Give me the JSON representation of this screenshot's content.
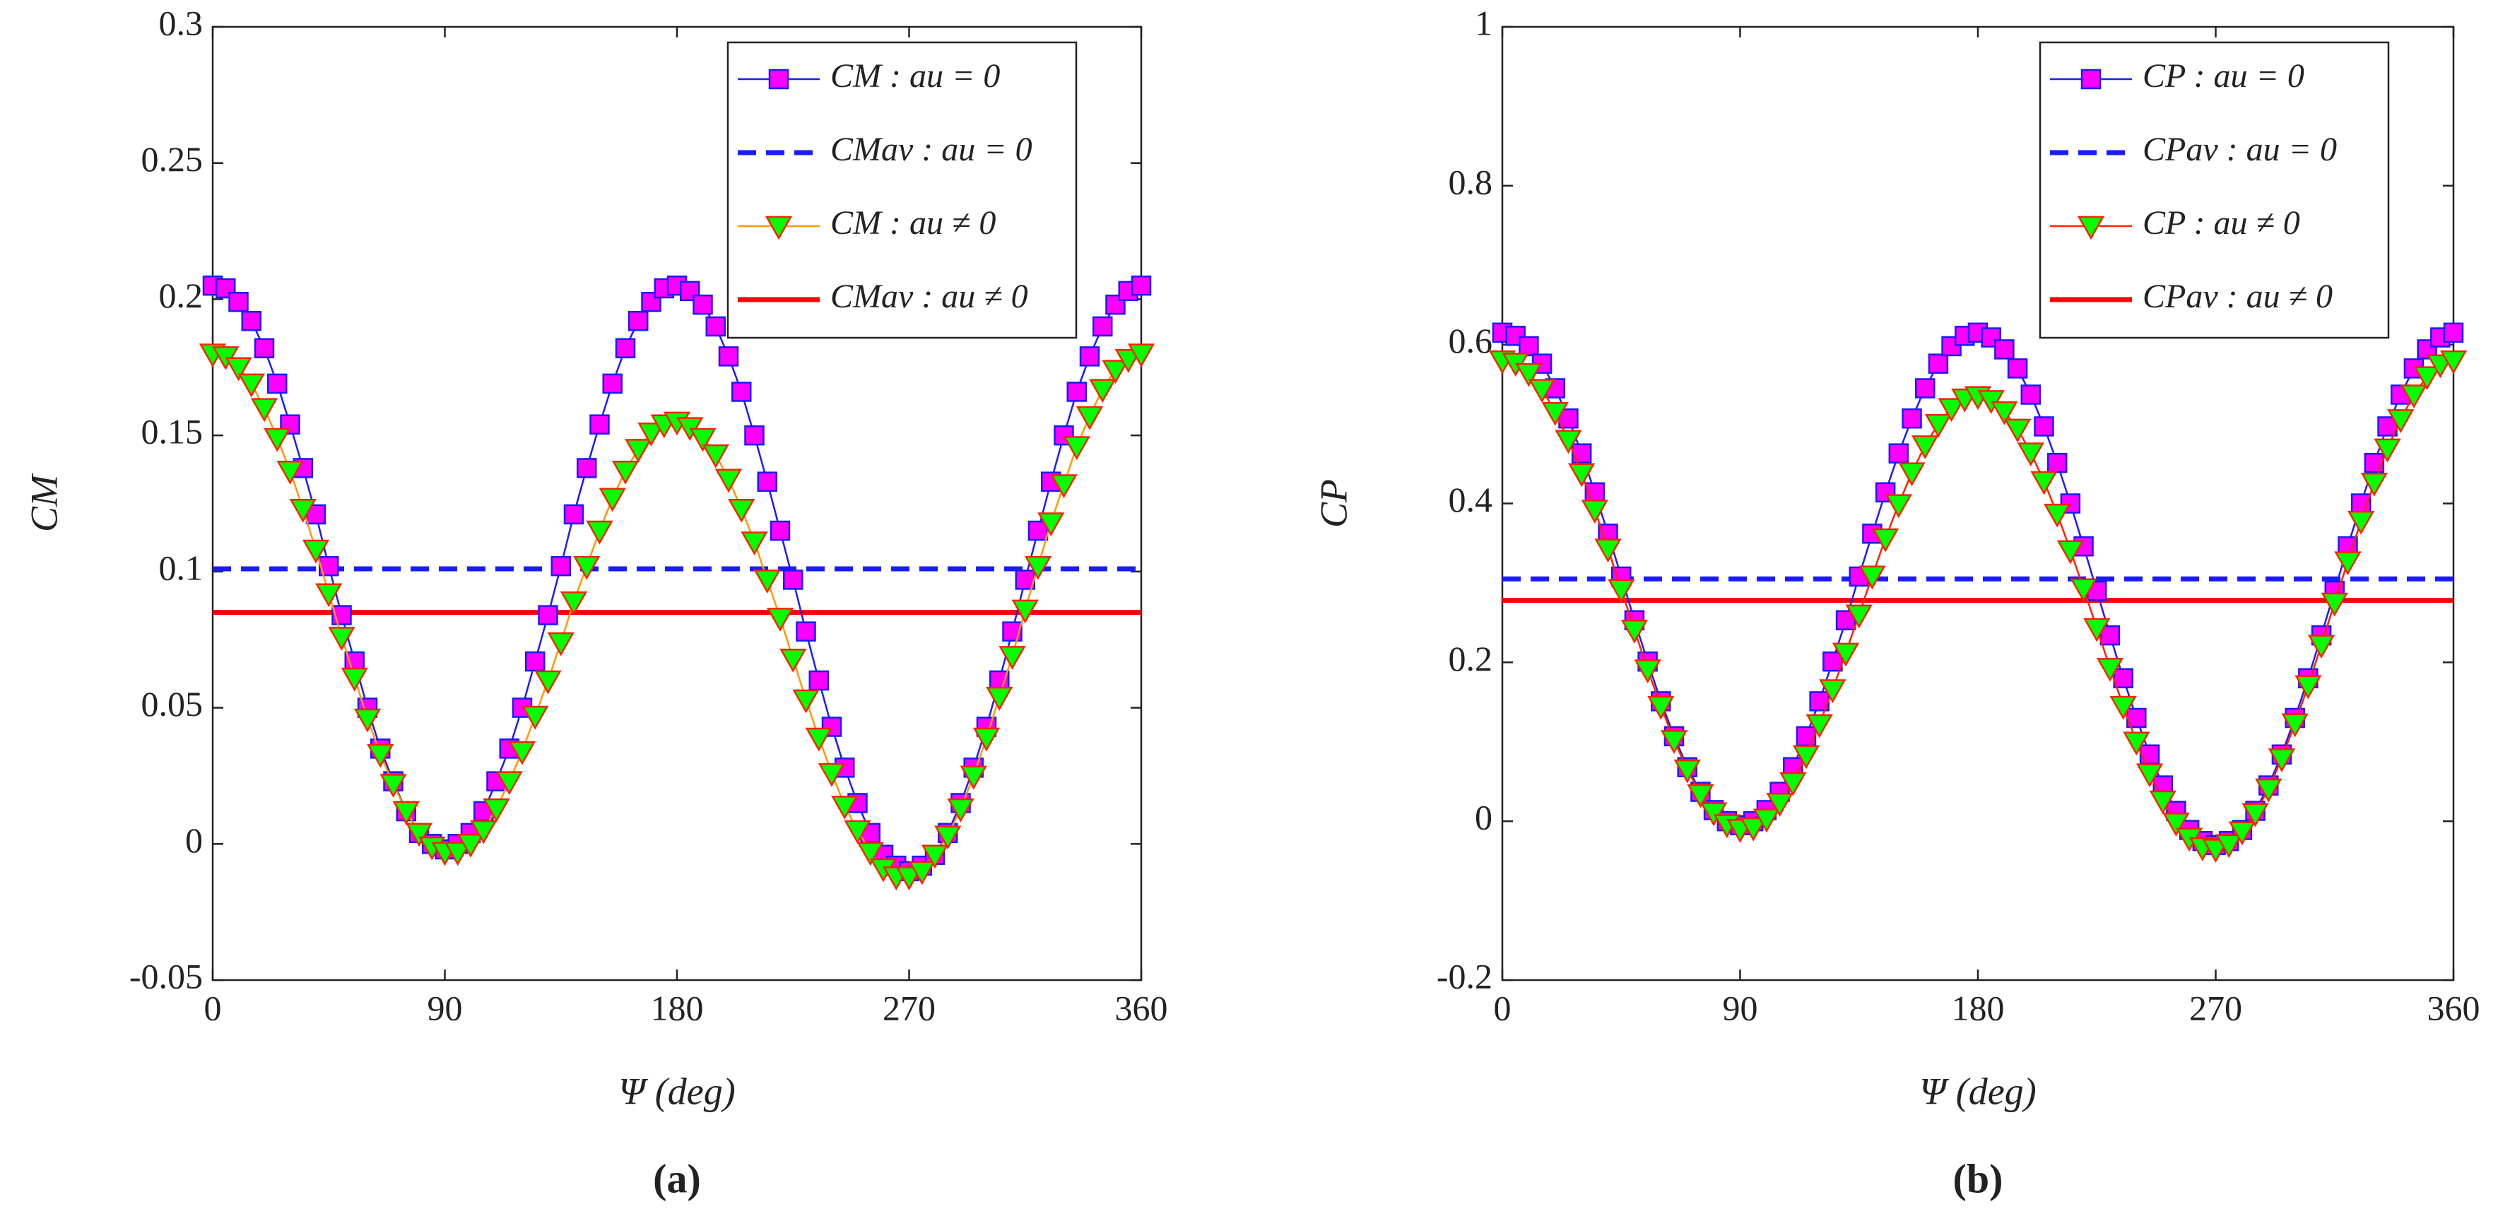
{
  "chart_data": [
    {
      "type": "line",
      "panel_label": "(a)",
      "xlabel": "Ψ  (deg)",
      "ylabel": "CM",
      "xlim": [
        0,
        360
      ],
      "xticks": [
        0,
        90,
        180,
        270,
        360
      ],
      "ylim": [
        -0.05,
        0.3
      ],
      "yticks": [
        -0.05,
        0,
        0.05,
        0.1,
        0.15,
        0.2,
        0.25,
        0.3
      ],
      "legend": "northeast",
      "x": [
        0,
        5,
        10,
        15,
        20,
        25,
        30,
        35,
        40,
        45,
        50,
        55,
        60,
        65,
        70,
        75,
        80,
        85,
        90,
        95,
        100,
        105,
        110,
        115,
        120,
        125,
        130,
        135,
        140,
        145,
        150,
        155,
        160,
        165,
        170,
        175,
        180,
        185,
        190,
        195,
        200,
        205,
        210,
        215,
        220,
        225,
        230,
        235,
        240,
        245,
        250,
        255,
        260,
        265,
        270,
        275,
        280,
        285,
        290,
        295,
        300,
        305,
        310,
        315,
        320,
        325,
        330,
        335,
        340,
        345,
        350,
        355,
        360
      ],
      "series": [
        {
          "name": "CM : au = 0",
          "color": "#ff00ff",
          "edge": "#1a1aff",
          "marker": "square",
          "values": [
            0.205,
            0.204,
            0.199,
            0.192,
            0.182,
            0.169,
            0.154,
            0.138,
            0.121,
            0.102,
            0.084,
            0.067,
            0.05,
            0.035,
            0.023,
            0.012,
            0.004,
            0,
            -0.002,
            0,
            0.004,
            0.012,
            0.023,
            0.035,
            0.05,
            0.067,
            0.084,
            0.102,
            0.121,
            0.138,
            0.154,
            0.169,
            0.182,
            0.192,
            0.199,
            0.204,
            0.205,
            0.203,
            0.198,
            0.19,
            0.179,
            0.166,
            0.15,
            0.133,
            0.115,
            0.097,
            0.078,
            0.06,
            0.043,
            0.028,
            0.015,
            0.004,
            -0.004,
            -0.008,
            -0.01,
            -0.008,
            -0.004,
            0.004,
            0.015,
            0.028,
            0.043,
            0.06,
            0.078,
            0.097,
            0.115,
            0.133,
            0.15,
            0.166,
            0.179,
            0.19,
            0.198,
            0.203,
            0.205
          ]
        },
        {
          "name": "CMav : au = 0",
          "color": "#1a1aff",
          "style": "dashed",
          "value": 0.101
        },
        {
          "name": "CM : au ≠ 0",
          "color": "#00ff00",
          "edge": "#ff2200",
          "line": "#ff9900",
          "marker": "triangle",
          "values": [
            0.18,
            0.179,
            0.175,
            0.169,
            0.16,
            0.149,
            0.137,
            0.123,
            0.108,
            0.092,
            0.076,
            0.061,
            0.046,
            0.033,
            0.022,
            0.012,
            0.004,
            -0.001,
            -0.003,
            -0.003,
            0,
            0.005,
            0.013,
            0.023,
            0.034,
            0.047,
            0.06,
            0.074,
            0.089,
            0.102,
            0.115,
            0.127,
            0.137,
            0.145,
            0.151,
            0.154,
            0.155,
            0.153,
            0.149,
            0.143,
            0.134,
            0.123,
            0.111,
            0.097,
            0.083,
            0.068,
            0.053,
            0.039,
            0.026,
            0.014,
            0.005,
            -0.003,
            -0.009,
            -0.012,
            -0.012,
            -0.01,
            -0.004,
            0.003,
            0.013,
            0.025,
            0.039,
            0.054,
            0.069,
            0.086,
            0.102,
            0.118,
            0.132,
            0.146,
            0.157,
            0.167,
            0.174,
            0.178,
            0.18
          ]
        },
        {
          "name": "CMav : au ≠ 0",
          "color": "#ff0000",
          "style": "solid",
          "value": 0.085
        }
      ]
    },
    {
      "type": "line",
      "panel_label": "(b)",
      "xlabel": "Ψ  (deg)",
      "ylabel": "CP",
      "xlim": [
        0,
        360
      ],
      "xticks": [
        0,
        90,
        180,
        270,
        360
      ],
      "ylim": [
        -0.2,
        1
      ],
      "yticks": [
        -0.2,
        0,
        0.2,
        0.4,
        0.6,
        0.8,
        1
      ],
      "legend": "northeast",
      "x": [
        0,
        5,
        10,
        15,
        20,
        25,
        30,
        35,
        40,
        45,
        50,
        55,
        60,
        65,
        70,
        75,
        80,
        85,
        90,
        95,
        100,
        105,
        110,
        115,
        120,
        125,
        130,
        135,
        140,
        145,
        150,
        155,
        160,
        165,
        170,
        175,
        180,
        185,
        190,
        195,
        200,
        205,
        210,
        215,
        220,
        225,
        230,
        235,
        240,
        245,
        250,
        255,
        260,
        265,
        270,
        275,
        280,
        285,
        290,
        295,
        300,
        305,
        310,
        315,
        320,
        325,
        330,
        335,
        340,
        345,
        350,
        355,
        360
      ],
      "series": [
        {
          "name": "CP : au = 0",
          "color": "#ff00ff",
          "edge": "#1a1aff",
          "marker": "square",
          "values": [
            0.615,
            0.611,
            0.598,
            0.576,
            0.545,
            0.507,
            0.463,
            0.414,
            0.362,
            0.308,
            0.253,
            0.201,
            0.151,
            0.107,
            0.068,
            0.037,
            0.014,
            0,
            -0.005,
            0,
            0.014,
            0.037,
            0.068,
            0.107,
            0.151,
            0.201,
            0.253,
            0.308,
            0.362,
            0.414,
            0.463,
            0.507,
            0.545,
            0.576,
            0.598,
            0.611,
            0.615,
            0.609,
            0.594,
            0.57,
            0.537,
            0.497,
            0.451,
            0.4,
            0.346,
            0.29,
            0.234,
            0.18,
            0.13,
            0.084,
            0.045,
            0.013,
            -0.011,
            -0.025,
            -0.03,
            -0.025,
            -0.011,
            0.013,
            0.045,
            0.084,
            0.13,
            0.18,
            0.234,
            0.29,
            0.346,
            0.4,
            0.451,
            0.497,
            0.537,
            0.57,
            0.594,
            0.609,
            0.615
          ]
        },
        {
          "name": "CPav : au = 0",
          "color": "#1a1aff",
          "style": "dashed",
          "value": 0.305
        },
        {
          "name": "CP : au ≠ 0",
          "color": "#00ff00",
          "edge": "#ff2200",
          "line": "#ff2200",
          "marker": "triangle",
          "values": [
            0.58,
            0.577,
            0.564,
            0.544,
            0.515,
            0.48,
            0.438,
            0.392,
            0.343,
            0.292,
            0.241,
            0.191,
            0.145,
            0.102,
            0.065,
            0.034,
            0.011,
            -0.004,
            -0.01,
            -0.008,
            0.003,
            0.023,
            0.049,
            0.083,
            0.122,
            0.166,
            0.212,
            0.26,
            0.309,
            0.356,
            0.399,
            0.439,
            0.473,
            0.5,
            0.52,
            0.532,
            0.535,
            0.53,
            0.516,
            0.494,
            0.464,
            0.428,
            0.387,
            0.341,
            0.293,
            0.243,
            0.193,
            0.145,
            0.1,
            0.06,
            0.026,
            -0.002,
            -0.021,
            -0.033,
            -0.035,
            -0.029,
            -0.013,
            0.01,
            0.041,
            0.079,
            0.123,
            0.171,
            0.222,
            0.275,
            0.327,
            0.378,
            0.426,
            0.469,
            0.506,
            0.537,
            0.56,
            0.575,
            0.58
          ]
        },
        {
          "name": "CPav : au ≠ 0",
          "color": "#ff0000",
          "style": "solid",
          "value": 0.278
        }
      ]
    }
  ]
}
